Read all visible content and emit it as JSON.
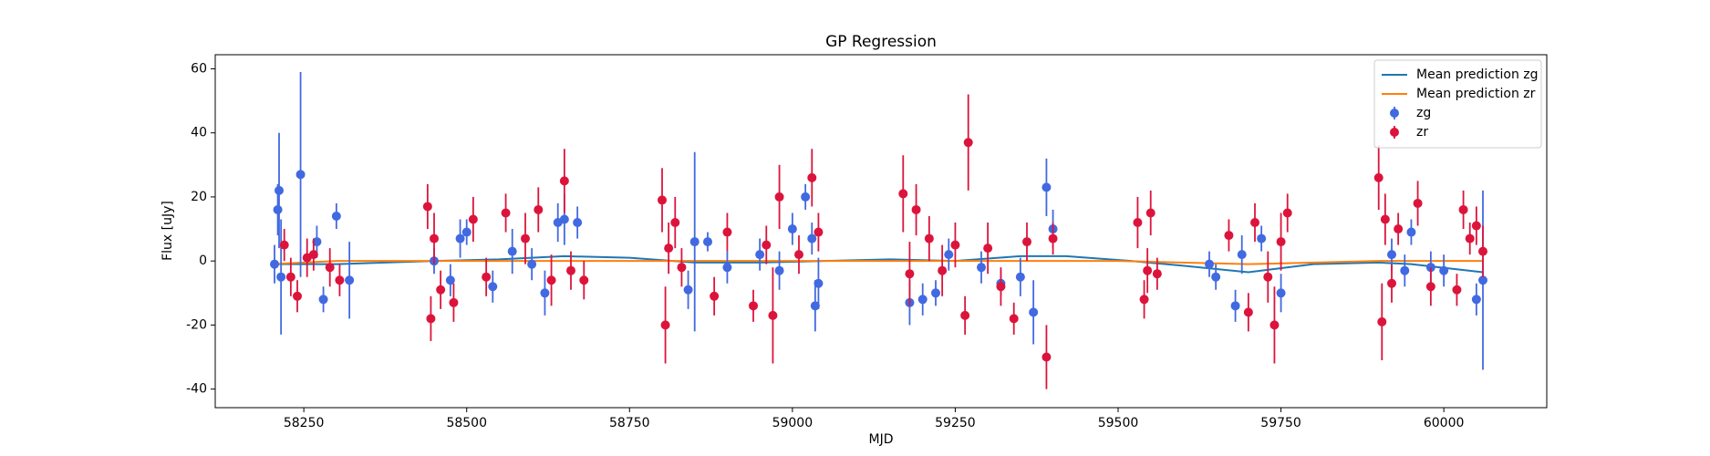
{
  "chart_data": {
    "type": "scatter",
    "title": "GP Regression",
    "xlabel": "MJD",
    "ylabel": "Flux [uJy]",
    "xlim": [
      58114,
      60158
    ],
    "ylim": [
      -45.8,
      64.4
    ],
    "xticks": [
      58250,
      58500,
      58750,
      59000,
      59250,
      59500,
      59750,
      60000
    ],
    "yticks": [
      -40,
      -20,
      0,
      20,
      40,
      60
    ],
    "legend": "upper right",
    "series": [
      {
        "name": "Mean prediction zg",
        "type": "line",
        "color": "#1f77b4",
        "x": [
          58200,
          58300,
          58450,
          58550,
          58650,
          58750,
          58850,
          58950,
          59050,
          59150,
          59250,
          59350,
          59420,
          59520,
          59600,
          59700,
          59800,
          59900,
          59950,
          60060
        ],
        "values": [
          -1,
          -1,
          0,
          0.5,
          1.5,
          1,
          -0.5,
          -0.5,
          0,
          0.5,
          0,
          1.5,
          1.5,
          0,
          -1.5,
          -3.5,
          -1,
          -0.5,
          -1,
          -3.5
        ]
      },
      {
        "name": "Mean prediction zr",
        "type": "line",
        "color": "#ff7f0e",
        "x": [
          58200,
          58300,
          58500,
          58700,
          58900,
          59100,
          59300,
          59500,
          59700,
          59900,
          60060
        ],
        "values": [
          -1,
          0,
          0,
          0,
          0,
          0,
          0,
          0,
          -1,
          0,
          0
        ]
      },
      {
        "name": "zg",
        "type": "errorbar",
        "color": "#4169e1",
        "x": [
          58205,
          58210,
          58212,
          58215,
          58245,
          58270,
          58280,
          58300,
          58320,
          58450,
          58475,
          58490,
          58500,
          58540,
          58570,
          58600,
          58620,
          58640,
          58650,
          58670,
          58840,
          58850,
          58870,
          58900,
          58950,
          58980,
          59000,
          59020,
          59030,
          59035,
          59040,
          59180,
          59200,
          59220,
          59240,
          59290,
          59320,
          59350,
          59370,
          59390,
          59400,
          59640,
          59650,
          59680,
          59690,
          59720,
          59750,
          59920,
          59940,
          59950,
          59980,
          60000,
          60050,
          60060
        ],
        "values": [
          -1,
          16,
          22,
          -5,
          27,
          6,
          -12,
          14,
          -6,
          0,
          -6,
          7,
          9,
          -8,
          3,
          -1,
          -10,
          12,
          13,
          12,
          -9,
          6,
          6,
          -2,
          2,
          -3,
          10,
          20,
          7,
          -14,
          -7,
          -13,
          -12,
          -10,
          2,
          -2,
          -7,
          -5,
          -16,
          23,
          10,
          -1,
          -5,
          -14,
          2,
          7,
          -10,
          2,
          -3,
          9,
          -2,
          -3,
          -12,
          -6
        ],
        "errors": [
          6,
          8,
          18,
          18,
          32,
          5,
          4,
          4,
          12,
          4,
          5,
          6,
          4,
          5,
          7,
          5,
          7,
          6,
          8,
          5,
          6,
          28,
          3,
          5,
          5,
          6,
          5,
          4,
          5,
          8,
          8,
          7,
          5,
          4,
          5,
          5,
          4,
          6,
          10,
          9,
          6,
          4,
          4,
          5,
          6,
          4,
          6,
          5,
          5,
          4,
          5,
          5,
          5,
          28
        ]
      },
      {
        "name": "zr",
        "type": "errorbar",
        "color": "#dc143c",
        "x": [
          58220,
          58230,
          58240,
          58255,
          58265,
          58290,
          58305,
          58440,
          58445,
          58450,
          58460,
          58480,
          58510,
          58530,
          58560,
          58590,
          58610,
          58630,
          58650,
          58660,
          58680,
          58800,
          58805,
          58810,
          58820,
          58830,
          58880,
          58900,
          58940,
          58960,
          58970,
          58980,
          59010,
          59030,
          59040,
          59170,
          59180,
          59190,
          59210,
          59230,
          59250,
          59265,
          59270,
          59300,
          59320,
          59340,
          59360,
          59390,
          59400,
          59530,
          59540,
          59545,
          59550,
          59560,
          59670,
          59700,
          59710,
          59730,
          59740,
          59750,
          59760,
          59900,
          59905,
          59910,
          59920,
          59930,
          59960,
          59980,
          60020,
          60030,
          60040,
          60050,
          60060
        ],
        "values": [
          5,
          -5,
          -11,
          1,
          2,
          -2,
          -6,
          17,
          -18,
          7,
          -9,
          -13,
          13,
          -5,
          15,
          7,
          16,
          -6,
          25,
          -3,
          -6,
          19,
          -20,
          4,
          12,
          -2,
          -11,
          9,
          -14,
          5,
          -17,
          20,
          2,
          26,
          9,
          21,
          -4,
          16,
          7,
          -3,
          5,
          -17,
          37,
          4,
          -8,
          -18,
          6,
          -30,
          7,
          12,
          -12,
          -3,
          15,
          -4,
          8,
          -16,
          12,
          -5,
          -20,
          6,
          15,
          26,
          -19,
          13,
          -7,
          10,
          18,
          -8,
          -9,
          16,
          7,
          11,
          3
        ],
        "errors": [
          5,
          6,
          5,
          6,
          5,
          6,
          5,
          7,
          7,
          8,
          6,
          6,
          7,
          6,
          6,
          8,
          7,
          8,
          10,
          6,
          6,
          10,
          12,
          8,
          8,
          6,
          6,
          6,
          5,
          6,
          15,
          10,
          6,
          9,
          6,
          12,
          10,
          8,
          7,
          8,
          7,
          6,
          15,
          8,
          6,
          5,
          6,
          10,
          5,
          8,
          6,
          7,
          7,
          5,
          5,
          6,
          6,
          8,
          12,
          9,
          6,
          10,
          12,
          8,
          6,
          5,
          7,
          6,
          5,
          6,
          5,
          6,
          8
        ]
      }
    ]
  }
}
